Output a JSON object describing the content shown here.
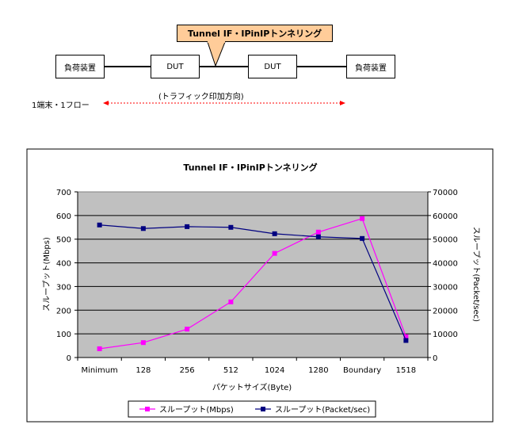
{
  "diagram": {
    "callout_label": "Tunnel IF・IPinIPトンネリング",
    "left_device": "負荷装置",
    "dut_left": "DUT",
    "dut_right": "DUT",
    "right_device": "負荷装置",
    "direction_label": "(トラフィック印加方向)",
    "flow_label": "1端末・1フロー",
    "arrow_color": "#ff0000"
  },
  "chart_data": {
    "type": "line",
    "title": "Tunnel IF・IPinIPトンネリング",
    "xlabel": "パケットサイズ(Byte)",
    "ylabel_left": "スループット(Mbps)",
    "ylabel_right": "スループット(Packet/sec)",
    "categories": [
      "Minimum",
      "128",
      "256",
      "512",
      "1024",
      "1280",
      "Boundary",
      "1518"
    ],
    "ylim_left": [
      0,
      700
    ],
    "ylim_right": [
      0,
      70000
    ],
    "yticks_left": [
      "0",
      "100",
      "200",
      "300",
      "400",
      "500",
      "600",
      "700"
    ],
    "yticks_right": [
      "0",
      "10000",
      "20000",
      "30000",
      "40000",
      "50000",
      "60000",
      "70000"
    ],
    "plot_background": "#c0c0c0",
    "grid": true,
    "legend_position": "bottom",
    "series": [
      {
        "name": "スループット(Mbps)",
        "axis": "left",
        "color": "#ff00ff",
        "values": [
          37,
          63,
          120,
          235,
          440,
          530,
          587,
          88
        ]
      },
      {
        "name": "スループット(Packet/sec)",
        "axis": "right",
        "color": "#000080",
        "values": [
          56000,
          54500,
          55300,
          55000,
          52300,
          51000,
          50300,
          7200
        ]
      }
    ]
  }
}
